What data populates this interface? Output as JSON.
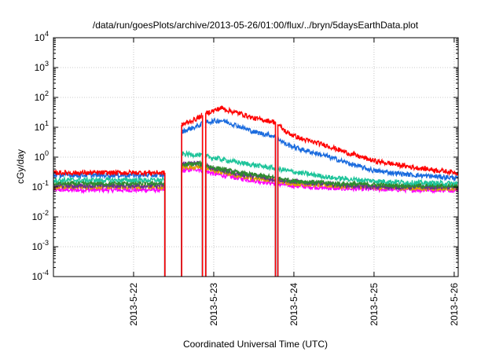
{
  "chart_data": {
    "type": "line",
    "title": "/data/run/goesPlots/archive/2013-05-26/01:00/flux/../bryn/5daysEarthData.plot",
    "xlabel": "Coordinated Universal Time (UTC)",
    "ylabel": "cGy/day",
    "yscale": "log",
    "ylim": [
      0.0001,
      10000
    ],
    "xlim": [
      0,
      5.05
    ],
    "grid": true,
    "y_ticks": [
      {
        "base": "10",
        "exp": "-4"
      },
      {
        "base": "10",
        "exp": "-3"
      },
      {
        "base": "10",
        "exp": "-2"
      },
      {
        "base": "10",
        "exp": "-1"
      },
      {
        "base": "10",
        "exp": "0"
      },
      {
        "base": "10",
        "exp": "1"
      },
      {
        "base": "10",
        "exp": "2"
      },
      {
        "base": "10",
        "exp": "3"
      },
      {
        "base": "10",
        "exp": "4"
      }
    ],
    "x_ticks": [
      {
        "label": "2013-5-22",
        "value": 1.0
      },
      {
        "label": "2013-5-23",
        "value": 2.0
      },
      {
        "label": "2013-5-24",
        "value": 3.0
      },
      {
        "label": "2013-5-25",
        "value": 4.0
      },
      {
        "label": "2013-5-26",
        "value": 5.0
      }
    ],
    "gaps": [
      [
        1.39,
        1.6
      ],
      [
        1.86,
        1.9
      ],
      [
        2.77,
        2.8
      ]
    ],
    "series": [
      {
        "name": "red",
        "color": "#ff0000",
        "x": [
          0.0,
          1.39,
          1.6,
          1.8,
          1.9,
          2.0,
          2.1,
          2.2,
          2.35,
          2.5,
          2.77,
          2.9,
          3.1,
          3.4,
          3.7,
          4.0,
          4.5,
          5.05
        ],
        "y": [
          0.3,
          0.3,
          12,
          20,
          30,
          36,
          45,
          35,
          28,
          20,
          15,
          7,
          4,
          2.5,
          1.3,
          0.75,
          0.45,
          0.3
        ]
      },
      {
        "name": "blue",
        "color": "#1a6bde",
        "x": [
          0.0,
          1.39,
          1.6,
          1.8,
          1.9,
          2.0,
          2.1,
          2.2,
          2.35,
          2.5,
          2.77,
          2.9,
          3.1,
          3.4,
          3.7,
          4.0,
          4.5,
          5.05
        ],
        "y": [
          0.25,
          0.25,
          7,
          11,
          15,
          16,
          17,
          14,
          10,
          7,
          5,
          2.7,
          1.8,
          1.1,
          0.6,
          0.35,
          0.25,
          0.2
        ]
      },
      {
        "name": "teal",
        "color": "#1dc49a",
        "x": [
          0.0,
          1.39,
          1.6,
          1.8,
          2.0,
          2.2,
          2.4,
          2.77,
          3.0,
          3.5,
          4.0,
          4.5,
          5.05
        ],
        "y": [
          0.17,
          0.17,
          1.3,
          1.2,
          0.95,
          0.75,
          0.6,
          0.42,
          0.32,
          0.2,
          0.16,
          0.14,
          0.13
        ]
      },
      {
        "name": "green",
        "color": "#2e8b2e",
        "x": [
          0.0,
          1.39,
          1.6,
          1.8,
          2.0,
          2.3,
          2.77,
          3.0,
          3.5,
          4.0,
          4.5,
          5.05
        ],
        "y": [
          0.13,
          0.13,
          0.55,
          0.6,
          0.45,
          0.3,
          0.2,
          0.16,
          0.13,
          0.12,
          0.11,
          0.11
        ]
      },
      {
        "name": "purple",
        "color": "#6a2d91",
        "x": [
          0.0,
          1.39,
          1.6,
          1.8,
          2.0,
          2.3,
          2.77,
          3.0,
          3.5,
          4.0,
          4.5,
          5.05
        ],
        "y": [
          0.11,
          0.11,
          0.6,
          0.62,
          0.42,
          0.28,
          0.18,
          0.15,
          0.12,
          0.1,
          0.1,
          0.1
        ]
      },
      {
        "name": "orange",
        "color": "#e0a000",
        "x": [
          0.0,
          1.39,
          1.6,
          1.8,
          2.0,
          2.3,
          2.77,
          3.0,
          3.5,
          4.0,
          4.5,
          5.05
        ],
        "y": [
          0.1,
          0.1,
          0.45,
          0.48,
          0.35,
          0.24,
          0.16,
          0.13,
          0.11,
          0.1,
          0.09,
          0.09
        ]
      },
      {
        "name": "magenta",
        "color": "#ff00ff",
        "x": [
          0.0,
          1.39,
          1.6,
          1.8,
          2.0,
          2.3,
          2.77,
          3.0,
          3.5,
          4.0,
          4.5,
          5.05
        ],
        "y": [
          0.08,
          0.08,
          0.35,
          0.4,
          0.28,
          0.2,
          0.13,
          0.11,
          0.09,
          0.085,
          0.08,
          0.08
        ]
      }
    ]
  }
}
